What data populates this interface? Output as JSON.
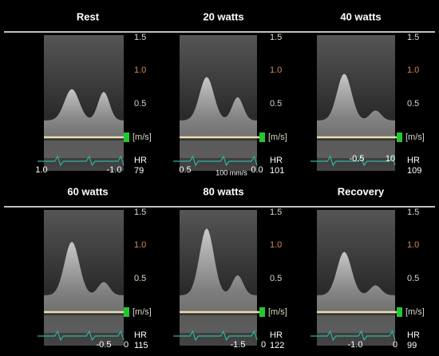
{
  "panels": [
    {
      "title": "Rest",
      "scale": [
        "1.5",
        "1.0",
        "0.5",
        "[m/s]"
      ],
      "hr_label": "HR",
      "hr": 79,
      "sweep_labels": [
        "1.0",
        "-1.0"
      ]
    },
    {
      "title": "20 watts",
      "scale": [
        "1.5",
        "1.0",
        "0.5",
        "[m/s]"
      ],
      "hr_label": "HR",
      "hr": 101,
      "sweep_labels": [
        "0.5",
        "100 mm/s",
        "0.0"
      ]
    },
    {
      "title": "40 watts",
      "scale": [
        "1.5",
        "1.0",
        "0.5",
        "[m/s]"
      ],
      "hr_label": "HR",
      "hr": 109,
      "sweep_labels": [
        "-0.5",
        "10"
      ]
    },
    {
      "title": "60 watts",
      "scale": [
        "1.5",
        "1.0",
        "0.5",
        "[m/s]"
      ],
      "hr_label": "HR",
      "hr": 115,
      "sweep_labels": [
        "-0.5",
        "0"
      ]
    },
    {
      "title": "80 watts",
      "scale": [
        "1.5",
        "1.0",
        "0.5",
        "[m/s]"
      ],
      "hr_label": "HR",
      "hr": 122,
      "sweep_labels": [
        "-1.5",
        "0"
      ]
    },
    {
      "title": "Recovery",
      "scale": [
        "1.5",
        "1.0",
        "0.5",
        "[m/s]"
      ],
      "hr_label": "HR",
      "hr": 99,
      "sweep_labels": [
        "-1.0",
        "0"
      ]
    }
  ]
}
